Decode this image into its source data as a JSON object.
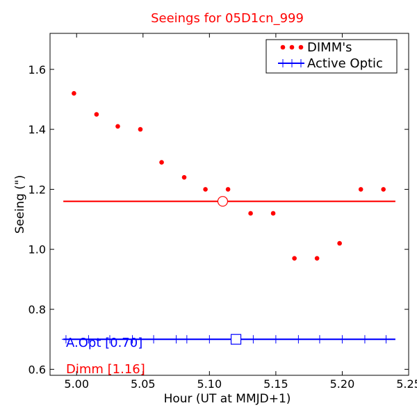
{
  "chart_data": {
    "type": "scatter",
    "title": "Seeings for 05D1cn_999",
    "xlabel": "Hour (UT at MMJD+1)",
    "ylabel": "Seeing (\")",
    "xlim": [
      4.98,
      5.25
    ],
    "ylim": [
      0.58,
      1.72
    ],
    "x_ticks": [
      5.0,
      5.05,
      5.1,
      5.15,
      5.2,
      5.25
    ],
    "x_tick_labels": [
      "5.00",
      "5.05",
      "5.10",
      "5.15",
      "5.20",
      "5.25"
    ],
    "y_ticks": [
      0.6,
      0.8,
      1.0,
      1.2,
      1.4,
      1.6
    ],
    "y_tick_labels": [
      "0.6",
      "0.8",
      "1.0",
      "1.2",
      "1.4",
      "1.6"
    ],
    "legend_position": "top-right",
    "series": [
      {
        "name": "DIMM's",
        "color": "#ff0000",
        "marker": "dot",
        "x": [
          4.998,
          5.015,
          5.031,
          5.048,
          5.064,
          5.081,
          5.097,
          5.114,
          5.131,
          5.148,
          5.164,
          5.181,
          5.198,
          5.214,
          5.231
        ],
        "y": [
          1.52,
          1.45,
          1.41,
          1.4,
          1.29,
          1.24,
          1.2,
          1.2,
          1.12,
          1.12,
          0.97,
          0.97,
          1.02,
          1.2,
          1.2
        ]
      },
      {
        "name": "Active Optic",
        "color": "#0000ff",
        "marker": "plus",
        "x": [
          4.992,
          5.009,
          5.025,
          5.042,
          5.058,
          5.075,
          5.083,
          5.1,
          5.117,
          5.133,
          5.15,
          5.167,
          5.183,
          5.2,
          5.217,
          5.233
        ],
        "y": [
          0.7,
          0.7,
          0.7,
          0.7,
          0.7,
          0.7,
          0.7,
          0.7,
          0.7,
          0.7,
          0.7,
          0.7,
          0.7,
          0.7,
          0.7,
          0.7
        ]
      }
    ],
    "reference_lines": [
      {
        "color": "#ff0000",
        "y": 1.16,
        "x_start": 4.99,
        "x_end": 5.24,
        "marker": "circle",
        "marker_x": 5.11
      },
      {
        "color": "#0000ff",
        "y": 0.7,
        "x_start": 4.99,
        "x_end": 5.24,
        "marker": "square",
        "marker_x": 5.12
      }
    ],
    "annotations": [
      {
        "text": "A.Opt [0.70]",
        "color": "#0000ff"
      },
      {
        "text": "Dimm [1.16]",
        "color": "#ff0000"
      }
    ]
  }
}
